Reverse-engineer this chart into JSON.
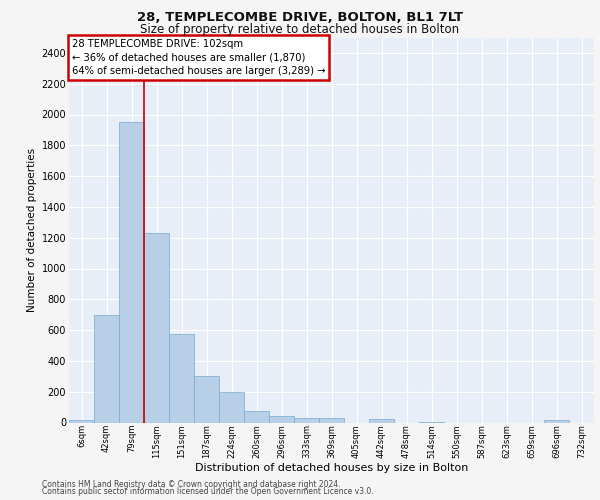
{
  "title1": "28, TEMPLECOMBE DRIVE, BOLTON, BL1 7LT",
  "title2": "Size of property relative to detached houses in Bolton",
  "xlabel": "Distribution of detached houses by size in Bolton",
  "ylabel": "Number of detached properties",
  "bar_color": "#b8cfe8",
  "bar_edge_color": "#7aaad0",
  "background_color": "#e8eef7",
  "grid_color": "#ffffff",
  "tick_labels": [
    "6sqm",
    "42sqm",
    "79sqm",
    "115sqm",
    "151sqm",
    "187sqm",
    "224sqm",
    "260sqm",
    "296sqm",
    "333sqm",
    "369sqm",
    "405sqm",
    "442sqm",
    "478sqm",
    "514sqm",
    "550sqm",
    "587sqm",
    "623sqm",
    "659sqm",
    "696sqm",
    "732sqm"
  ],
  "bar_values": [
    15,
    700,
    1950,
    1230,
    575,
    305,
    200,
    75,
    40,
    30,
    30,
    0,
    25,
    0,
    5,
    0,
    0,
    0,
    0,
    15,
    0
  ],
  "ylim": [
    0,
    2500
  ],
  "yticks": [
    0,
    200,
    400,
    600,
    800,
    1000,
    1200,
    1400,
    1600,
    1800,
    2000,
    2200,
    2400
  ],
  "vline_x_index": 2,
  "vline_color": "#cc0000",
  "annotation_text": "28 TEMPLECOMBE DRIVE: 102sqm\n← 36% of detached houses are smaller (1,870)\n64% of semi-detached houses are larger (3,289) →",
  "annotation_box_facecolor": "#ffffff",
  "annotation_box_edgecolor": "#cc0000",
  "footer1": "Contains HM Land Registry data © Crown copyright and database right 2024.",
  "footer2": "Contains public sector information licensed under the Open Government Licence v3.0.",
  "fig_width": 6.0,
  "fig_height": 5.0,
  "dpi": 100
}
